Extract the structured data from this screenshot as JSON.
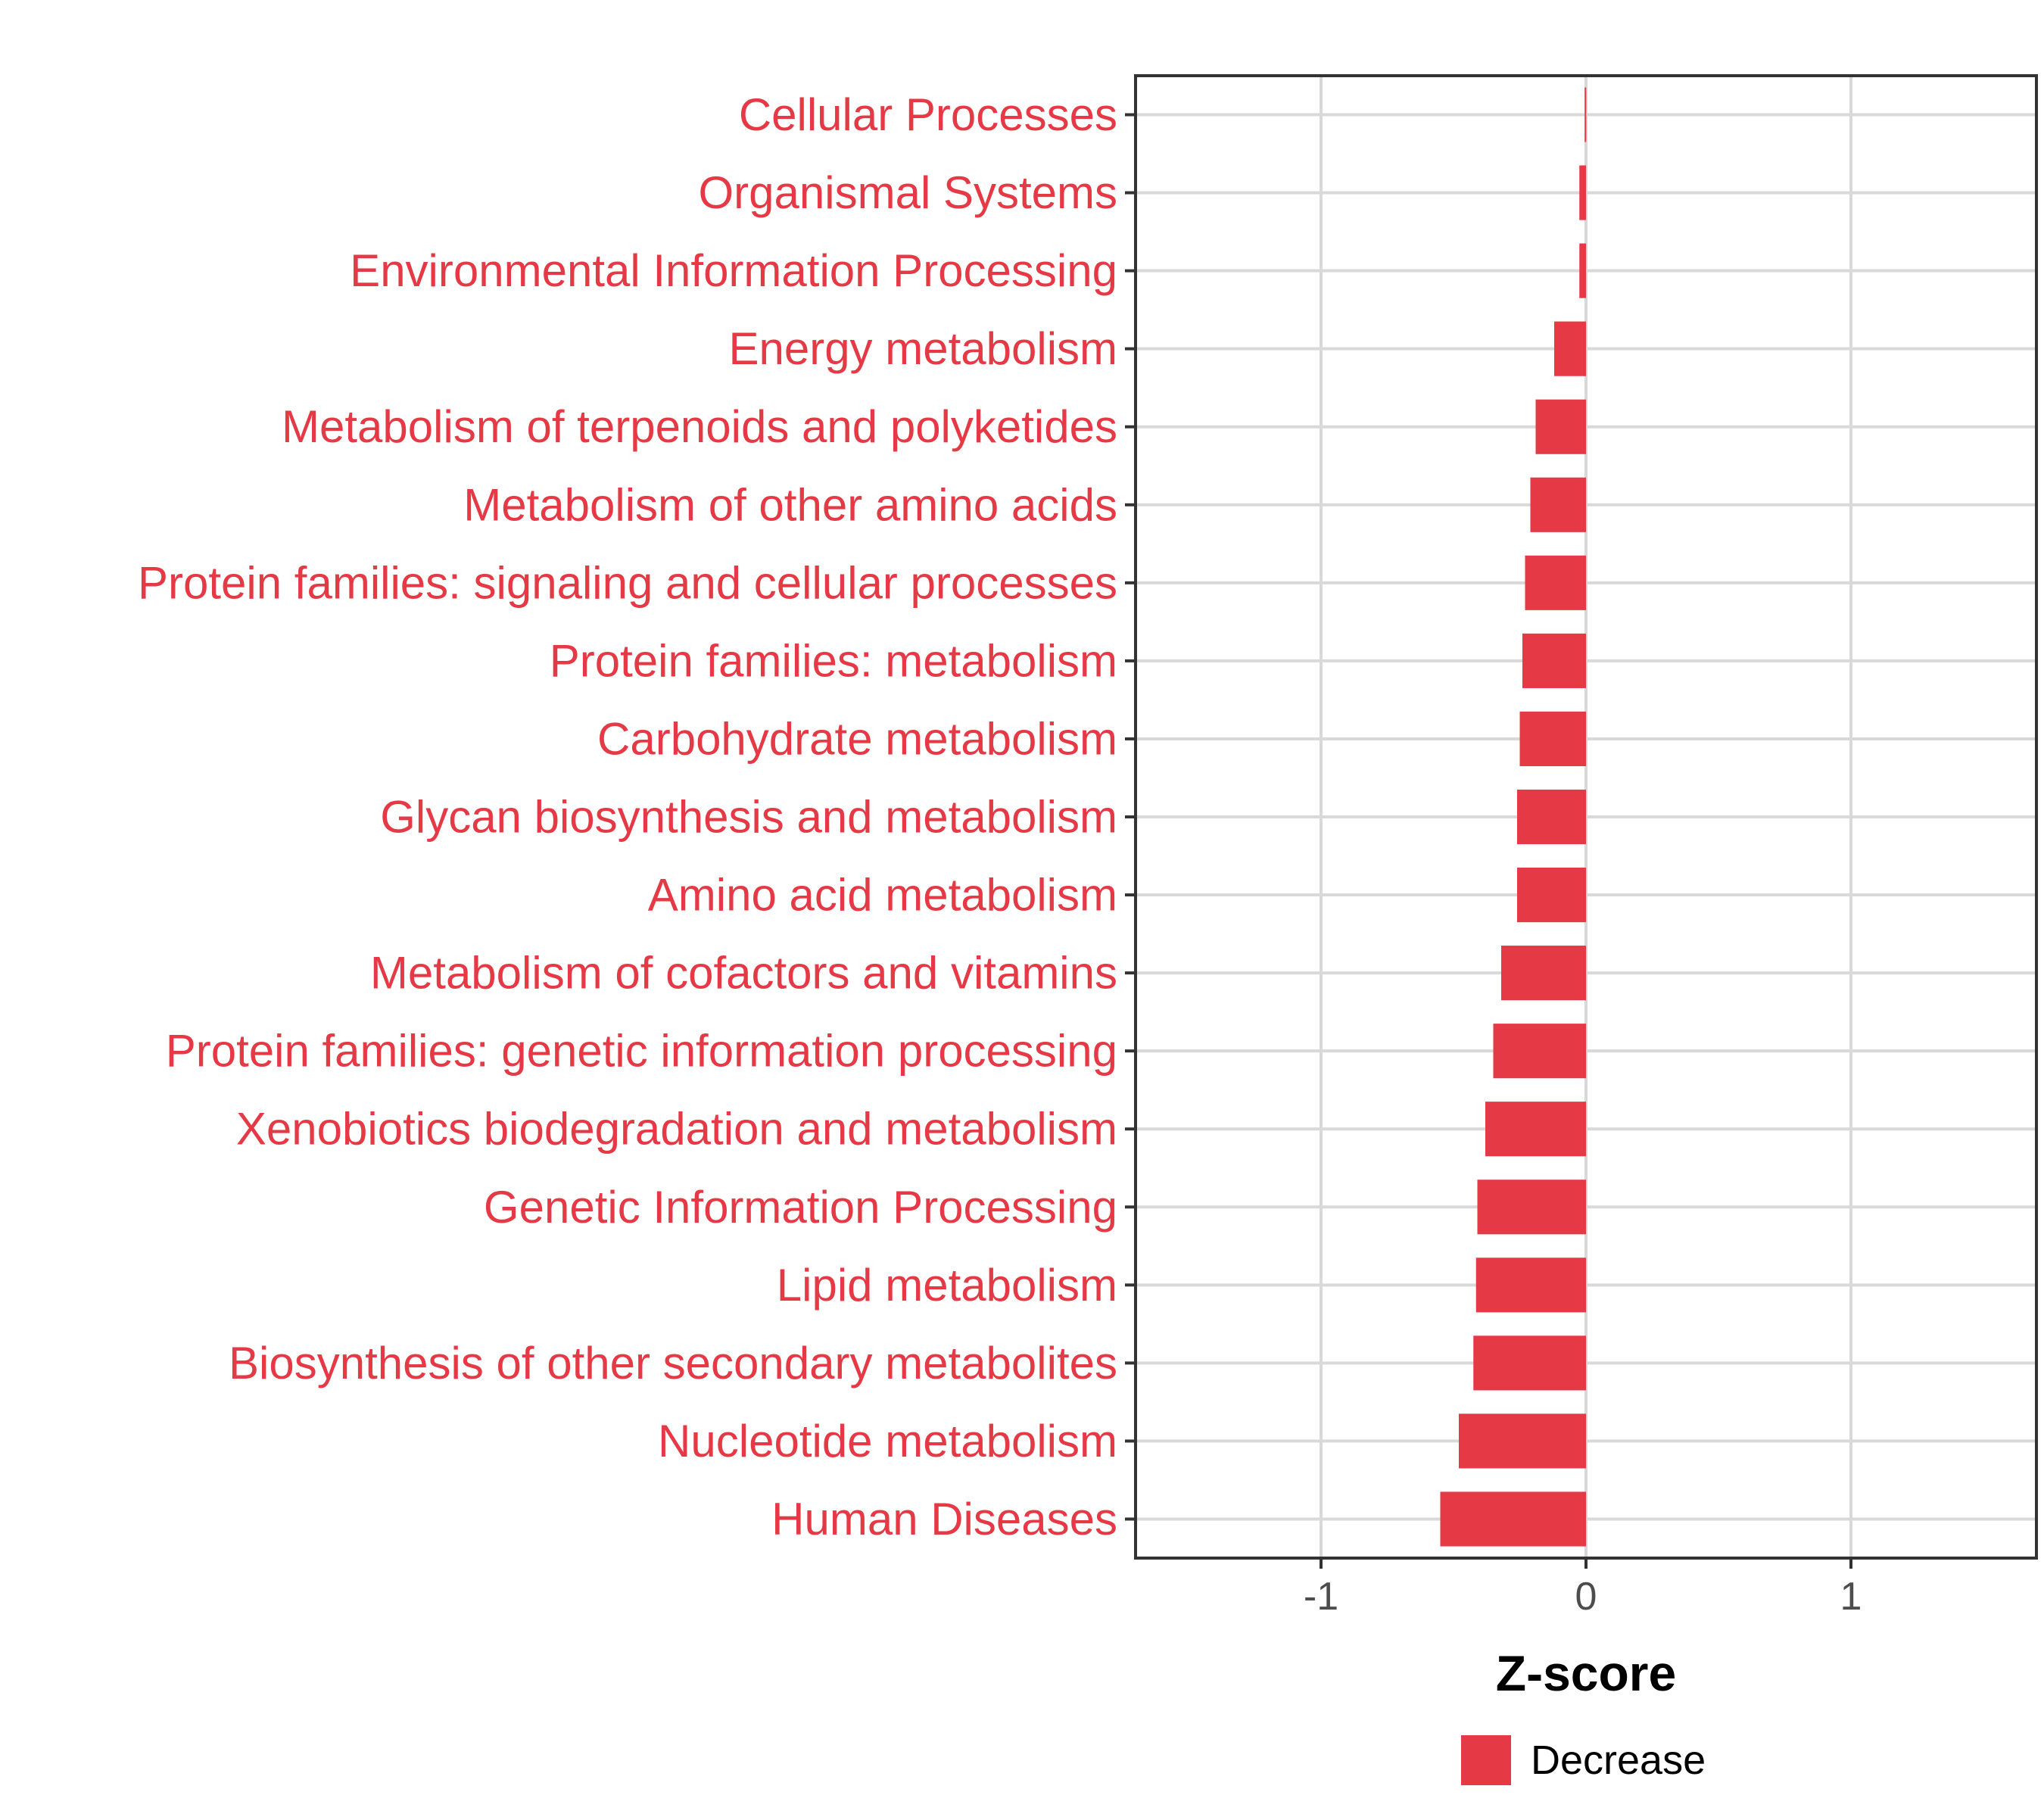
{
  "chart_data": {
    "type": "bar",
    "orientation": "horizontal",
    "title": "",
    "xlabel": "Z-score",
    "ylabel": "",
    "xlim": [
      -1.7,
      1.7
    ],
    "xticks": [
      -1,
      0,
      1
    ],
    "xtick_labels": [
      "-1",
      "0",
      "1"
    ],
    "grid": true,
    "categories": [
      "Cellular Processes",
      "Organismal Systems",
      "Environmental Information Processing",
      "Energy metabolism",
      "Metabolism of terpenoids and polyketides",
      "Metabolism of other amino acids",
      "Protein families: signaling and cellular processes",
      "Protein families: metabolism",
      "Carbohydrate metabolism",
      "Glycan biosynthesis and metabolism",
      "Amino acid metabolism",
      "Metabolism of cofactors and vitamins",
      "Protein families: genetic information processing",
      "Xenobiotics biodegradation and metabolism",
      "Genetic Information Processing",
      "Lipid metabolism",
      "Biosynthesis of other secondary metabolites",
      "Nucleotide metabolism",
      "Human Diseases"
    ],
    "series": [
      {
        "name": "Decrease",
        "color": "#E63946",
        "values": [
          -0.005,
          -0.025,
          -0.025,
          -0.12,
          -0.19,
          -0.21,
          -0.23,
          -0.24,
          -0.25,
          -0.26,
          -0.26,
          -0.32,
          -0.35,
          -0.38,
          -0.41,
          -0.415,
          -0.425,
          -0.48,
          -0.55
        ]
      }
    ],
    "legend": {
      "position": "bottom",
      "entries": [
        "Decrease"
      ]
    }
  },
  "colors": {
    "bar": "#E63946",
    "label": "#E63946",
    "grid": "#d9d9d9",
    "panel_border": "#333333",
    "tick_text": "#4d4d4d"
  }
}
